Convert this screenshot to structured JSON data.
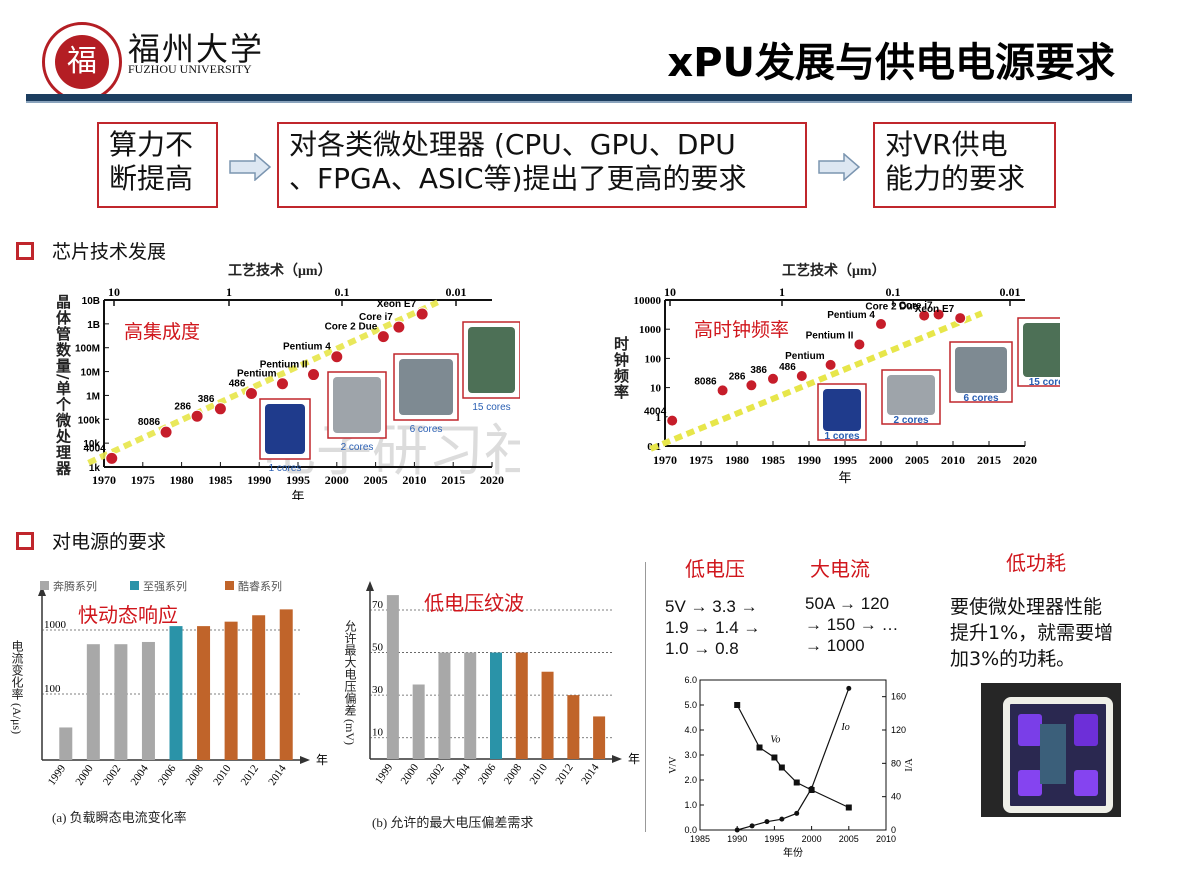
{
  "header": {
    "logo_char": "福",
    "logo_cn": "福州大学",
    "logo_en": "FUZHOU UNIVERSITY",
    "title": "xPU发展与供电电源要求"
  },
  "flow": [
    {
      "line1": "算力不",
      "line2": "断提高"
    },
    {
      "line1": "对各类微处理器 (CPU、GPU、DPU",
      "line2": "、FPGA、ASIC等)提出了更高的要求"
    },
    {
      "line1": "对VR供电",
      "line2": "能力的要求"
    }
  ],
  "section1": {
    "title": "芯片技术发展"
  },
  "section2": {
    "title": "对电源的要求"
  },
  "colors": {
    "accent_red": "#c0262c",
    "navy": "#1c3d5f"
  },
  "chart_left": {
    "top_axis_label": "工艺技术（μm）",
    "top_ticks": [
      "10",
      "1",
      "0.1",
      "0.01"
    ],
    "ylabel": "晶体管数量/单个微处理器",
    "y_ticks": [
      "10B",
      "1B",
      "100M",
      "10M",
      "1M",
      "100k",
      "10k",
      "1k"
    ],
    "x_ticks": [
      "1970",
      "1975",
      "1980",
      "1985",
      "1990",
      "1995",
      "2000",
      "2005",
      "2010",
      "2015",
      "2020"
    ],
    "xlabel": "年",
    "annotation": "高集成度",
    "points": [
      "4004",
      "8086",
      "286",
      "386",
      "486",
      "Pentium",
      "Pentium II",
      "Pentium 4",
      "Core 2 Due",
      "Core i7",
      "Xeon E7"
    ],
    "cores": [
      "1 cores",
      "2 cores",
      "6 cores",
      "15 cores"
    ],
    "watermark": "电子研习社"
  },
  "chart_right": {
    "top_axis_label": "工艺技术（μm）",
    "top_ticks": [
      "10",
      "1",
      "0.1",
      "0.01"
    ],
    "ylabel": "时钟频率",
    "y_ticks": [
      "10000",
      "1000",
      "100",
      "10",
      "1",
      "0.1"
    ],
    "x_ticks": [
      "1970",
      "1975",
      "1980",
      "1985",
      "1990",
      "1995",
      "2000",
      "2005",
      "2010",
      "2015",
      "2020"
    ],
    "xlabel": "年",
    "annotation": "高时钟频率",
    "points": [
      "4004",
      "8086",
      "286",
      "386",
      "486",
      "Pentium",
      "Pentium II",
      "Pentium 4",
      "Core 2 Due",
      "Core i7",
      "Xeon E7"
    ],
    "cores": [
      "1 cores",
      "2 cores",
      "6 cores",
      "15 cores"
    ]
  },
  "chart_data": [
    {
      "type": "scatter",
      "title": "",
      "xlabel": "年",
      "ylabel": "晶体管数量/单个微处理器",
      "y_scale": "log",
      "ylim": [
        1000,
        10000000000
      ],
      "xlim": [
        1970,
        2020
      ],
      "series": [
        {
          "name": "",
          "x": [
            1971,
            1978,
            1982,
            1985,
            1989,
            1993,
            1997,
            2000,
            2006,
            2008,
            2011
          ],
          "y": [
            2300,
            29000,
            134000,
            275000,
            1200000,
            3100000,
            7500000,
            42000000,
            291000000,
            731000000,
            2600000000
          ],
          "labels": [
            "4004",
            "8086",
            "286",
            "386",
            "486",
            "Pentium",
            "Pentium II",
            "Pentium 4",
            "Core 2 Due",
            "Core i7",
            "Xeon E7"
          ]
        }
      ]
    },
    {
      "type": "scatter",
      "title": "",
      "xlabel": "年",
      "ylabel": "时钟频率",
      "y_scale": "log",
      "ylim": [
        0.1,
        10000
      ],
      "xlim": [
        1970,
        2020
      ],
      "series": [
        {
          "name": "",
          "x": [
            1971,
            1978,
            1982,
            1985,
            1989,
            1993,
            1997,
            2000,
            2006,
            2008,
            2011
          ],
          "y": [
            0.74,
            8,
            12,
            20,
            25,
            60,
            300,
            1500,
            2930,
            3200,
            2400
          ],
          "labels": [
            "4004",
            "8086",
            "286",
            "386",
            "486",
            "Pentium",
            "Pentium II",
            "Pentium 4",
            "Core 2 Due",
            "Core i7",
            "Xeon E7"
          ]
        }
      ]
    },
    {
      "type": "bar",
      "title": "(a)  负载瞬态电流变化率",
      "ylabel": "电流变化率 (A/μs)",
      "categories": [
        "1999",
        "2000",
        "2002",
        "2004",
        "2006",
        "2008",
        "2010",
        "2012",
        "2014"
      ],
      "values": [
        30,
        600,
        600,
        650,
        1150,
        1150,
        1350,
        1700,
        2100
      ],
      "y_scale": "log",
      "y_ticks": [
        "100",
        "1000"
      ],
      "legend": [
        "奔腾系列",
        "至强系列",
        "酷睿系列"
      ],
      "legend_colors": [
        "#a8a8a8",
        "#2a93a8",
        "#c0642a"
      ],
      "bar_series": [
        0,
        0,
        0,
        0,
        1,
        2,
        2,
        2,
        2
      ],
      "annotation": "快动态响应",
      "arrow_label": "年"
    },
    {
      "type": "bar",
      "title": "(b)  允许的最大电压偏差需求",
      "ylabel": "允许最大电压偏差 (mV)",
      "categories": [
        "1999",
        "2000",
        "2002",
        "2004",
        "2006",
        "2008",
        "2010",
        "2012",
        "2014"
      ],
      "values": [
        77,
        35,
        50,
        50,
        50,
        50,
        41,
        30,
        20
      ],
      "ylim": [
        0,
        80
      ],
      "y_ticks": [
        "10",
        "30",
        "50",
        "70"
      ],
      "bar_series": [
        0,
        0,
        0,
        0,
        1,
        2,
        2,
        2,
        2
      ],
      "annotation": "低电压纹波",
      "arrow_label": "年"
    },
    {
      "type": "line",
      "xlabel": "年份",
      "y_left_label": "V/V",
      "y_right_label": "I/A",
      "xlim": [
        1985,
        2010
      ],
      "x_ticks": [
        "1985",
        "1990",
        "1995",
        "2000",
        "2005",
        "2010"
      ],
      "y_left_ticks": [
        "0.0",
        "1.0",
        "2.0",
        "3.0",
        "4.0",
        "5.0",
        "6.0"
      ],
      "y_right_ticks": [
        "0",
        "40",
        "80",
        "120",
        "160"
      ],
      "series": [
        {
          "name": "Vo",
          "x": [
            1990,
            1993,
            1995,
            1996,
            1998,
            2000,
            2005
          ],
          "y": [
            5.0,
            3.3,
            2.9,
            2.5,
            1.9,
            1.6,
            0.9
          ]
        },
        {
          "name": "Io",
          "x": [
            1990,
            1992,
            1994,
            1996,
            1998,
            2000,
            2005
          ],
          "y": [
            0,
            5,
            10,
            13,
            20,
            50,
            170
          ]
        }
      ]
    }
  ],
  "requirements": {
    "low_voltage": {
      "head": "低电压",
      "lines": [
        "5V → 3.3 →",
        "1.9 → 1.4 →",
        "1.0 → 0.8"
      ]
    },
    "high_current": {
      "head": "大电流",
      "lines": [
        "50A → 120",
        "→ 150 → …",
        "→ 1000"
      ]
    },
    "low_power": {
      "head": "低功耗",
      "lines": [
        "要使微处理器性能",
        "提升1%，就需要增",
        "加3%的功耗。"
      ]
    }
  }
}
